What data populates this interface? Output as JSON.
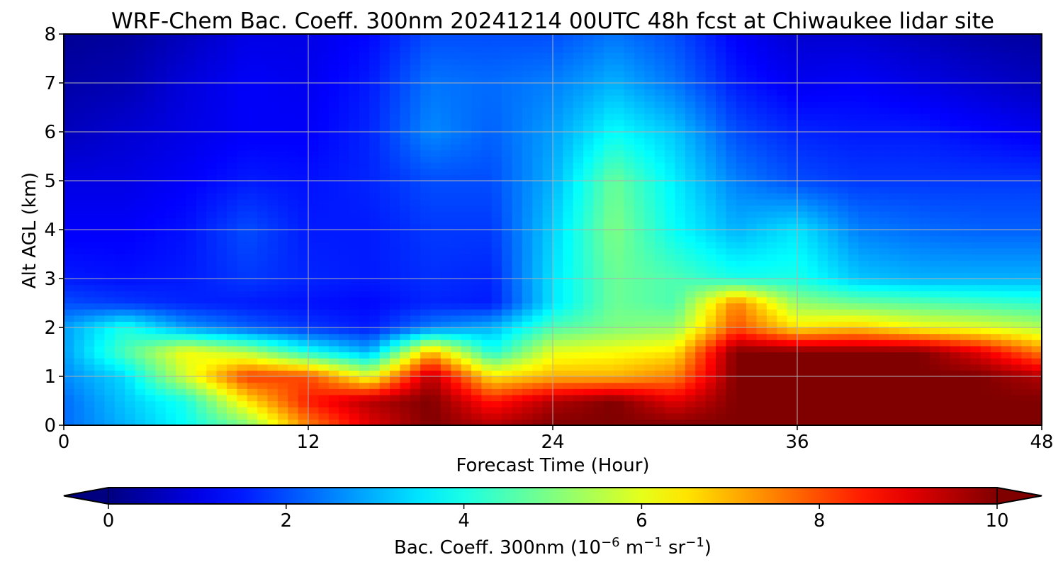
{
  "chart_data": {
    "type": "heatmap",
    "title": "WRF-Chem Bac. Coeff. 300nm  20241214 00UTC 48h fcst at Chiwaukee lidar site",
    "xlabel": "Forecast Time (Hour)",
    "ylabel": "Alt AGL (km)",
    "xlim": [
      0,
      48
    ],
    "ylim": [
      0,
      8
    ],
    "xticks": [
      0,
      12,
      24,
      36,
      48
    ],
    "yticks": [
      0,
      1,
      2,
      3,
      4,
      5,
      6,
      7,
      8
    ],
    "grid": true,
    "colormap": "jet",
    "colorbar": {
      "orientation": "horizontal",
      "placement": "bottom",
      "label_main": "Bac. Coeff. 300nm  (10",
      "label_exp1": "−6",
      "label_mid": " m",
      "label_exp2": "−1",
      "label_mid2": " sr",
      "label_exp3": "−1",
      "label_end": ")",
      "range": [
        0,
        10
      ],
      "ticks": [
        0,
        2,
        4,
        6,
        8,
        10
      ],
      "extend": "both"
    },
    "x": [
      0,
      3,
      6,
      9,
      12,
      15,
      18,
      21,
      24,
      27,
      30,
      33,
      36,
      39,
      42,
      45,
      48
    ],
    "y": [
      0,
      0.5,
      1,
      1.5,
      2,
      2.5,
      3,
      4,
      5,
      6,
      7,
      8
    ],
    "z": [
      [
        2.3,
        3.0,
        3.8,
        5.0,
        7.5,
        9.0,
        10.0,
        9.5,
        10.0,
        10.0,
        10.0,
        10.0,
        10.0,
        10.0,
        10.0,
        10.0,
        10.0
      ],
      [
        2.3,
        3.2,
        4.0,
        6.5,
        8.5,
        9.5,
        10.0,
        8.5,
        9.5,
        10.0,
        9.0,
        10.0,
        10.0,
        10.0,
        10.0,
        10.0,
        10.0
      ],
      [
        2.6,
        3.4,
        5.8,
        8.2,
        8.0,
        6.0,
        9.5,
        6.5,
        7.0,
        7.0,
        7.5,
        10.0,
        10.0,
        10.0,
        10.0,
        10.0,
        9.5
      ],
      [
        2.8,
        4.5,
        6.2,
        5.5,
        4.0,
        3.0,
        7.0,
        4.0,
        6.0,
        6.2,
        6.5,
        10.0,
        10.0,
        10.0,
        10.0,
        9.0,
        7.5
      ],
      [
        2.8,
        4.0,
        2.8,
        2.2,
        1.8,
        1.5,
        2.5,
        3.0,
        4.5,
        5.0,
        5.2,
        8.0,
        6.5,
        6.8,
        6.2,
        6.0,
        5.5
      ],
      [
        2.0,
        1.8,
        1.6,
        1.5,
        1.4,
        1.3,
        1.6,
        1.5,
        3.5,
        4.8,
        4.5,
        7.5,
        5.2,
        4.8,
        4.6,
        4.4,
        4.2
      ],
      [
        1.5,
        1.4,
        1.5,
        1.8,
        1.6,
        1.5,
        1.7,
        1.6,
        3.5,
        4.8,
        4.5,
        4.0,
        4.0,
        3.2,
        3.0,
        3.0,
        3.0
      ],
      [
        1.2,
        1.2,
        1.4,
        2.0,
        1.5,
        1.5,
        1.8,
        1.8,
        3.3,
        5.0,
        3.8,
        3.0,
        3.5,
        2.5,
        2.3,
        2.2,
        2.2
      ],
      [
        1.0,
        1.0,
        1.2,
        1.5,
        1.4,
        1.6,
        2.0,
        2.0,
        3.0,
        4.8,
        3.6,
        2.5,
        2.0,
        1.8,
        1.8,
        1.8,
        1.8
      ],
      [
        0.6,
        0.8,
        1.0,
        1.2,
        1.2,
        1.6,
        2.6,
        2.2,
        2.8,
        3.8,
        3.2,
        2.0,
        1.6,
        1.5,
        1.5,
        1.3,
        1.1
      ],
      [
        0.4,
        0.5,
        0.9,
        1.2,
        1.1,
        1.5,
        2.4,
        2.3,
        2.5,
        3.0,
        2.4,
        1.5,
        1.1,
        1.2,
        1.0,
        0.8,
        0.6
      ],
      [
        0.2,
        0.3,
        0.6,
        1.0,
        1.0,
        1.3,
        2.0,
        2.0,
        2.0,
        2.4,
        2.0,
        1.2,
        0.8,
        0.8,
        0.6,
        0.4,
        0.3
      ]
    ]
  }
}
